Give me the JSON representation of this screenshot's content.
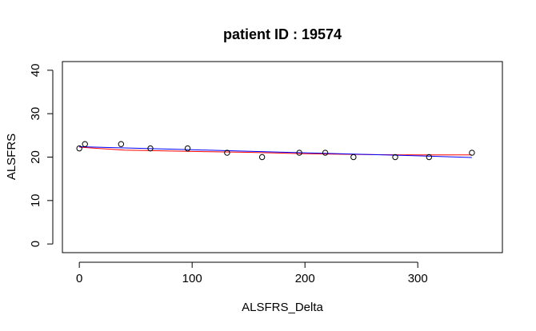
{
  "chart_data": {
    "type": "scatter",
    "title": "patient ID : 19574",
    "xlabel": "ALSFRS_Delta",
    "ylabel": "ALSFRS",
    "xlim": [
      -15,
      375
    ],
    "ylim": [
      -2,
      42
    ],
    "xticks": [
      0,
      100,
      200,
      300
    ],
    "yticks": [
      0,
      10,
      20,
      30,
      40
    ],
    "points": {
      "x": [
        0,
        5,
        37,
        63,
        96,
        131,
        162,
        195,
        218,
        243,
        280,
        310,
        348
      ],
      "y": [
        22,
        23,
        23,
        22,
        22,
        21,
        20,
        21,
        21,
        20,
        20,
        20,
        21
      ]
    },
    "series": [
      {
        "color": "#ff0000",
        "x": [
          0,
          40,
          100,
          150,
          200,
          250,
          300,
          348
        ],
        "y": [
          22.3,
          21.6,
          21.3,
          21.1,
          20.8,
          20.6,
          20.5,
          20.5
        ]
      },
      {
        "color": "#0000ff",
        "x": [
          0,
          100,
          200,
          300,
          348
        ],
        "y": [
          22.4,
          21.7,
          21.0,
          20.3,
          19.9
        ]
      }
    ],
    "grid": false,
    "legend": "none"
  }
}
